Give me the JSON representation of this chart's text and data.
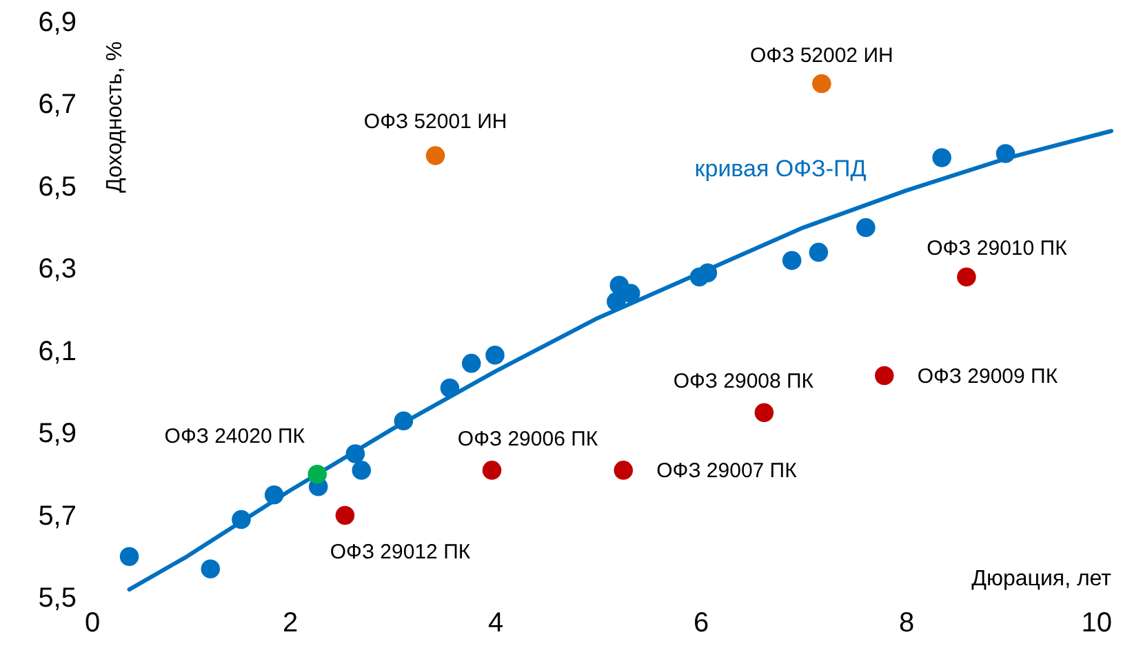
{
  "chart_data": {
    "type": "scatter",
    "xlabel": "Дюрация, лет",
    "ylabel": "Доходность, %",
    "xlim": [
      0,
      10
    ],
    "ylim": [
      5.5,
      6.9
    ],
    "xticks": [
      0,
      2,
      4,
      6,
      8,
      10
    ],
    "yticks": [
      {
        "value": 5.5,
        "label": "5,5"
      },
      {
        "value": 5.7,
        "label": "5,7"
      },
      {
        "value": 5.9,
        "label": "5,9"
      },
      {
        "value": 6.1,
        "label": "6,1"
      },
      {
        "value": 6.3,
        "label": "6,3"
      },
      {
        "value": 6.5,
        "label": "6,5"
      },
      {
        "value": 6.7,
        "label": "6,7"
      },
      {
        "value": 6.9,
        "label": "6,9"
      }
    ],
    "marker": "circle",
    "series": [
      {
        "name": "кривая ОФЗ-ПД",
        "type": "line",
        "marker": "none",
        "color": "#0070c0",
        "x": [
          0.44,
          1,
          2,
          3,
          4,
          5,
          6,
          7,
          8,
          9,
          10
        ],
        "values": [
          5.52,
          5.6,
          5.76,
          5.91,
          6.05,
          6.18,
          6.29,
          6.4,
          6.49,
          6.57,
          6.635
        ]
      },
      {
        "type": "scatter",
        "color": "#0070c0",
        "x": [
          0.44,
          1.23,
          1.53,
          1.85,
          2.28,
          2.64,
          2.7,
          3.11,
          3.56,
          3.77,
          4.0,
          5.18,
          5.21,
          5.32,
          5.99,
          6.07,
          6.89,
          7.15,
          7.61,
          8.35,
          8.97
        ],
        "values": [
          5.6,
          5.57,
          5.69,
          5.75,
          5.77,
          5.85,
          5.81,
          5.93,
          6.01,
          6.07,
          6.09,
          6.22,
          6.26,
          6.24,
          6.28,
          6.29,
          6.32,
          6.34,
          6.4,
          6.57,
          6.58
        ]
      },
      {
        "type": "scatter",
        "color": "#e36c09",
        "x": [
          3.42,
          7.18
        ],
        "values": [
          6.575,
          6.75
        ]
      },
      {
        "type": "scatter",
        "color": "#c00000",
        "x": [
          2.54,
          3.97,
          5.25,
          6.62,
          7.79,
          8.59
        ],
        "values": [
          5.7,
          5.81,
          5.81,
          5.95,
          6.04,
          6.28
        ]
      },
      {
        "type": "scatter",
        "color": "#00b050",
        "x": [
          2.27
        ],
        "values": [
          5.8
        ]
      }
    ],
    "annotations": [
      {
        "text": "ОФЗ 52001 ИН",
        "x": 3.42,
        "y": 6.575
      },
      {
        "text": "ОФЗ 52002 ИН",
        "x": 7.18,
        "y": 6.75
      },
      {
        "text": "ОФЗ 29010 ПК",
        "x": 8.59,
        "y": 6.28
      },
      {
        "text": "ОФЗ 29009 ПК",
        "x": 7.79,
        "y": 6.04
      },
      {
        "text": "ОФЗ 29008 ПК",
        "x": 6.62,
        "y": 5.95
      },
      {
        "text": "ОФЗ 29007 ПК",
        "x": 5.25,
        "y": 5.81
      },
      {
        "text": "ОФЗ 29006 ПК",
        "x": 3.97,
        "y": 5.81
      },
      {
        "text": "ОФЗ 29012 ПК",
        "x": 2.54,
        "y": 5.7
      },
      {
        "text": "ОФЗ 24020 ПК",
        "x": 2.27,
        "y": 5.8
      }
    ]
  }
}
